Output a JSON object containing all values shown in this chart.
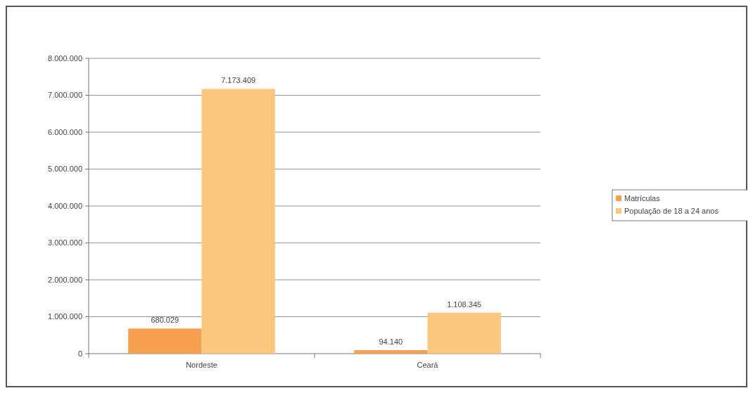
{
  "chart_data": {
    "type": "bar",
    "categories": [
      "Nordeste",
      "Ceará"
    ],
    "series": [
      {
        "name": "Matrículas",
        "color": "#f5a04e",
        "values": [
          680029,
          94140
        ]
      },
      {
        "name": "População de 18 a 24 anos",
        "color": "#fbc67e",
        "values": [
          7173409,
          1108345
        ]
      }
    ],
    "ylim": [
      0,
      8000000
    ],
    "yticks": [
      {
        "value": 0,
        "label": "0"
      },
      {
        "value": 1000000,
        "label": "1.000.000"
      },
      {
        "value": 2000000,
        "label": "2.000.000"
      },
      {
        "value": 3000000,
        "label": "3.000.000"
      },
      {
        "value": 4000000,
        "label": "4.000.000"
      },
      {
        "value": 5000000,
        "label": "5.000.000"
      },
      {
        "value": 6000000,
        "label": "6.000.000"
      },
      {
        "value": 7000000,
        "label": "7.000.000"
      },
      {
        "value": 8000000,
        "label": "8.000.000"
      }
    ],
    "value_labels": [
      [
        "680.029",
        "94.140"
      ],
      [
        "7.173.409",
        "1.108.345"
      ]
    ],
    "grid": "y",
    "legend": "right"
  }
}
